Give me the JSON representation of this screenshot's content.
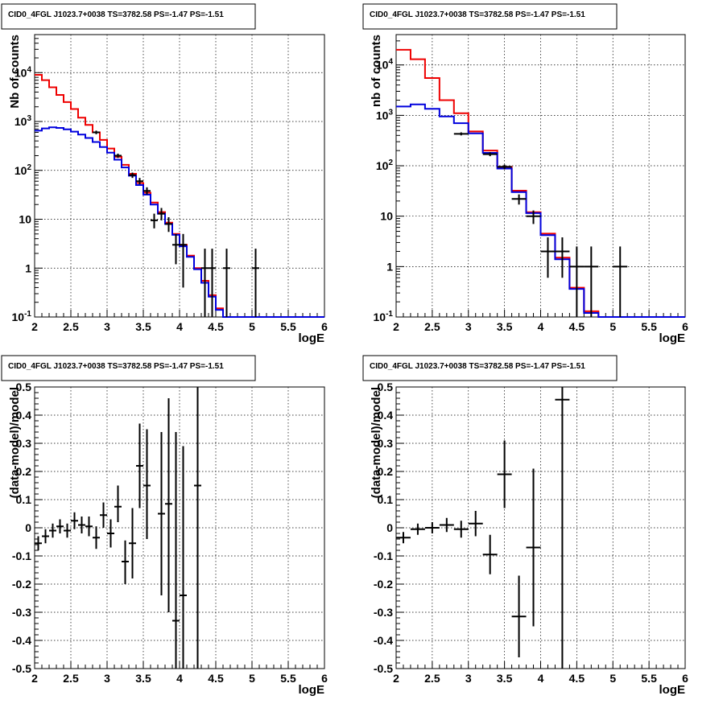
{
  "chart_data": [
    {
      "type": "histogram",
      "title": "CID0_4FGL J1023.7+0038 TS=3782.58 PS=-1.47 PS=-1.51",
      "xlabel": "logE",
      "ylabel": "Nb of counts",
      "xlim": [
        2,
        6
      ],
      "ylim": [
        0.1,
        60000
      ],
      "yscale": "log",
      "grid": true,
      "x_ticks": [
        "2",
        "2.5",
        "3",
        "3.5",
        "4",
        "4.5",
        "5",
        "5.5",
        "6"
      ],
      "y_ticks": [
        "10^-1",
        "1",
        "10",
        "10^2",
        "10^3",
        "10^4"
      ],
      "bin_edges": [
        2.0,
        2.1,
        2.2,
        2.3,
        2.4,
        2.5,
        2.6,
        2.7,
        2.8,
        2.9,
        3.0,
        3.1,
        3.2,
        3.3,
        3.4,
        3.5,
        3.6,
        3.7,
        3.8,
        3.9,
        4.0,
        4.1,
        4.2,
        4.3,
        4.4,
        4.5,
        4.6,
        4.7,
        4.8,
        4.9,
        5.0,
        5.1,
        5.2,
        5.3,
        5.4,
        5.5,
        5.6,
        5.7,
        5.8,
        5.9,
        6.0
      ],
      "series": [
        {
          "color": "#ee0000",
          "values": [
            9000,
            7000,
            5000,
            3500,
            2500,
            1800,
            1200,
            850,
            600,
            420,
            280,
            190,
            130,
            85,
            55,
            35,
            22,
            14,
            8.5,
            5,
            3,
            1.8,
            1,
            0.55,
            0.28,
            0.15,
            0.1,
            0.1,
            0.1,
            0.1,
            0.1,
            0.1,
            0.1,
            0.1,
            0.1,
            0.1,
            0.1,
            0.1,
            0.1,
            0.1
          ]
        },
        {
          "color": "#0000dd",
          "values": [
            650,
            720,
            760,
            740,
            690,
            620,
            540,
            460,
            380,
            300,
            230,
            165,
            115,
            78,
            50,
            32,
            20,
            13,
            8,
            4.8,
            2.8,
            1.7,
            0.95,
            0.5,
            0.26,
            0.14,
            0.1,
            0.1,
            0.1,
            0.1,
            0.1,
            0.1,
            0.1,
            0.1,
            0.1,
            0.1,
            0.1,
            0.1,
            0.1,
            0.1
          ]
        }
      ],
      "points": [
        {
          "x": 2.85,
          "xerr": 0.05,
          "y": 600,
          "ylo": 550,
          "yhi": 650
        },
        {
          "x": 3.15,
          "xerr": 0.05,
          "y": 200,
          "ylo": 180,
          "yhi": 220
        },
        {
          "x": 3.35,
          "xerr": 0.05,
          "y": 80,
          "ylo": 70,
          "yhi": 90
        },
        {
          "x": 3.45,
          "xerr": 0.05,
          "y": 60,
          "ylo": 52,
          "yhi": 70
        },
        {
          "x": 3.55,
          "xerr": 0.05,
          "y": 38,
          "ylo": 32,
          "yhi": 45
        },
        {
          "x": 3.65,
          "xerr": 0.05,
          "y": 9.5,
          "ylo": 6.5,
          "yhi": 13
        },
        {
          "x": 3.75,
          "xerr": 0.05,
          "y": 13,
          "ylo": 9.5,
          "yhi": 17
        },
        {
          "x": 3.85,
          "xerr": 0.05,
          "y": 8,
          "ylo": 5.5,
          "yhi": 11
        },
        {
          "x": 3.95,
          "xerr": 0.05,
          "y": 3,
          "ylo": 1.2,
          "yhi": 5
        },
        {
          "x": 4.05,
          "xerr": 0.05,
          "y": 3,
          "ylo": 0.4,
          "yhi": 5
        },
        {
          "x": 4.35,
          "xerr": 0.05,
          "y": 1,
          "ylo": 0.1,
          "yhi": 2.5
        },
        {
          "x": 4.45,
          "xerr": 0.05,
          "y": 1,
          "ylo": 0.1,
          "yhi": 2.5
        },
        {
          "x": 4.65,
          "xerr": 0.05,
          "y": 1,
          "ylo": 0.1,
          "yhi": 2.5
        },
        {
          "x": 5.05,
          "xerr": 0.05,
          "y": 1,
          "ylo": 0.1,
          "yhi": 2.5
        }
      ]
    },
    {
      "type": "histogram",
      "title": "CID0_4FGL J1023.7+0038 TS=3782.58 PS=-1.47 PS=-1.51",
      "xlabel": "logE",
      "ylabel": "nb of counts",
      "xlim": [
        2,
        6
      ],
      "ylim": [
        0.1,
        40000
      ],
      "yscale": "log",
      "grid": true,
      "x_ticks": [
        "2",
        "2.5",
        "3",
        "3.5",
        "4",
        "4.5",
        "5",
        "5.5",
        "6"
      ],
      "y_ticks": [
        "10^-1",
        "1",
        "10",
        "10^2",
        "10^3",
        "10^4"
      ],
      "bin_edges": [
        2.0,
        2.2,
        2.4,
        2.6,
        2.8,
        3.0,
        3.2,
        3.4,
        3.6,
        3.8,
        4.0,
        4.2,
        4.4,
        4.6,
        4.8,
        5.0,
        5.2,
        5.4,
        5.6,
        5.8,
        6.0
      ],
      "series": [
        {
          "color": "#ee0000",
          "values": [
            20000,
            13000,
            5500,
            2000,
            1100,
            480,
            200,
            95,
            32,
            12,
            4.5,
            1.5,
            0.38,
            0.13,
            0.1,
            0.1,
            0.1,
            0.1,
            0.1,
            0.1
          ]
        },
        {
          "color": "#0000dd",
          "values": [
            1500,
            1650,
            1350,
            950,
            700,
            440,
            180,
            88,
            30,
            11.5,
            4.2,
            1.4,
            0.36,
            0.12,
            0.1,
            0.1,
            0.1,
            0.1,
            0.1,
            0.1
          ]
        }
      ],
      "points": [
        {
          "x": 2.9,
          "xerr": 0.1,
          "y": 430,
          "ylo": 400,
          "yhi": 460
        },
        {
          "x": 3.3,
          "xerr": 0.1,
          "y": 170,
          "ylo": 155,
          "yhi": 185
        },
        {
          "x": 3.5,
          "xerr": 0.1,
          "y": 95,
          "ylo": 85,
          "yhi": 105
        },
        {
          "x": 3.7,
          "xerr": 0.1,
          "y": 22,
          "ylo": 17,
          "yhi": 27
        },
        {
          "x": 3.9,
          "xerr": 0.1,
          "y": 10,
          "ylo": 7,
          "yhi": 13
        },
        {
          "x": 4.1,
          "xerr": 0.1,
          "y": 2,
          "ylo": 0.6,
          "yhi": 3.8
        },
        {
          "x": 4.3,
          "xerr": 0.1,
          "y": 2,
          "ylo": 0.6,
          "yhi": 3.8
        },
        {
          "x": 4.5,
          "xerr": 0.1,
          "y": 1,
          "ylo": 0.1,
          "yhi": 2.5
        },
        {
          "x": 4.7,
          "xerr": 0.1,
          "y": 1,
          "ylo": 0.1,
          "yhi": 2.5
        },
        {
          "x": 5.1,
          "xerr": 0.1,
          "y": 1,
          "ylo": 0.1,
          "yhi": 2.5
        }
      ]
    },
    {
      "type": "scatter",
      "title": "CID0_4FGL J1023.7+0038 TS=3782.58 PS=-1.47 PS=-1.51",
      "xlabel": "logE",
      "ylabel": "(data-model)/model",
      "xlim": [
        2,
        6
      ],
      "ylim": [
        -0.5,
        0.5
      ],
      "yscale": "linear",
      "grid": true,
      "x_ticks": [
        "2",
        "2.5",
        "3",
        "3.5",
        "4",
        "4.5",
        "5",
        "5.5",
        "6"
      ],
      "y_ticks": [
        "-0.5",
        "-0.4",
        "-0.3",
        "-0.2",
        "-0.1",
        "0",
        "0.1",
        "0.2",
        "0.3",
        "0.4",
        "0.5"
      ],
      "points": [
        {
          "x": 2.05,
          "xerr": 0.05,
          "y": -0.055,
          "ylo": -0.08,
          "yhi": -0.03
        },
        {
          "x": 2.15,
          "xerr": 0.05,
          "y": -0.03,
          "ylo": -0.055,
          "yhi": -0.005
        },
        {
          "x": 2.25,
          "xerr": 0.05,
          "y": -0.01,
          "ylo": -0.035,
          "yhi": 0.015
        },
        {
          "x": 2.35,
          "xerr": 0.05,
          "y": 0.005,
          "ylo": -0.02,
          "yhi": 0.03
        },
        {
          "x": 2.45,
          "xerr": 0.05,
          "y": -0.01,
          "ylo": -0.035,
          "yhi": 0.015
        },
        {
          "x": 2.55,
          "xerr": 0.05,
          "y": 0.025,
          "ylo": -0.005,
          "yhi": 0.055
        },
        {
          "x": 2.65,
          "xerr": 0.05,
          "y": 0.01,
          "ylo": -0.02,
          "yhi": 0.04
        },
        {
          "x": 2.75,
          "xerr": 0.05,
          "y": 0.005,
          "ylo": -0.03,
          "yhi": 0.04
        },
        {
          "x": 2.85,
          "xerr": 0.05,
          "y": -0.035,
          "ylo": -0.075,
          "yhi": 0.005
        },
        {
          "x": 2.95,
          "xerr": 0.05,
          "y": 0.045,
          "ylo": 0.0,
          "yhi": 0.09
        },
        {
          "x": 3.05,
          "xerr": 0.05,
          "y": -0.02,
          "ylo": -0.07,
          "yhi": 0.03
        },
        {
          "x": 3.15,
          "xerr": 0.05,
          "y": 0.075,
          "ylo": 0.02,
          "yhi": 0.15
        },
        {
          "x": 3.25,
          "xerr": 0.05,
          "y": -0.12,
          "ylo": -0.2,
          "yhi": -0.045
        },
        {
          "x": 3.35,
          "xerr": 0.05,
          "y": -0.055,
          "ylo": -0.18,
          "yhi": 0.07
        },
        {
          "x": 3.45,
          "xerr": 0.05,
          "y": 0.22,
          "ylo": 0.07,
          "yhi": 0.37
        },
        {
          "x": 3.55,
          "xerr": 0.05,
          "y": 0.15,
          "ylo": -0.04,
          "yhi": 0.35
        },
        {
          "x": 3.75,
          "xerr": 0.05,
          "y": 0.05,
          "ylo": -0.24,
          "yhi": 0.34
        },
        {
          "x": 3.85,
          "xerr": 0.05,
          "y": 0.085,
          "ylo": -0.3,
          "yhi": 0.46
        },
        {
          "x": 3.95,
          "xerr": 0.05,
          "y": -0.33,
          "ylo": -0.5,
          "yhi": 0.34
        },
        {
          "x": 4.05,
          "xerr": 0.05,
          "y": -0.24,
          "ylo": -0.5,
          "yhi": 0.29
        },
        {
          "x": 4.25,
          "xerr": 0.05,
          "y": 0.15,
          "ylo": -0.5,
          "yhi": 0.5
        }
      ]
    },
    {
      "type": "scatter",
      "title": "CID0_4FGL J1023.7+0038 TS=3782.58 PS=-1.47 PS=-1.51",
      "xlabel": "logE",
      "ylabel": "(data-model)/model",
      "xlim": [
        2,
        6
      ],
      "ylim": [
        -0.5,
        0.5
      ],
      "yscale": "linear",
      "grid": true,
      "x_ticks": [
        "2",
        "2.5",
        "3",
        "3.5",
        "4",
        "4.5",
        "5",
        "5.5",
        "6"
      ],
      "y_ticks": [
        "-0.5",
        "-0.4",
        "-0.3",
        "-0.2",
        "-0.1",
        "0",
        "0.1",
        "0.2",
        "0.3",
        "0.4",
        "0.5"
      ],
      "points": [
        {
          "x": 2.1,
          "xerr": 0.1,
          "y": -0.035,
          "ylo": -0.055,
          "yhi": -0.015
        },
        {
          "x": 2.3,
          "xerr": 0.1,
          "y": -0.005,
          "ylo": -0.025,
          "yhi": 0.015
        },
        {
          "x": 2.5,
          "xerr": 0.1,
          "y": 0.0,
          "ylo": -0.02,
          "yhi": 0.02
        },
        {
          "x": 2.7,
          "xerr": 0.1,
          "y": 0.01,
          "ylo": -0.015,
          "yhi": 0.035
        },
        {
          "x": 2.9,
          "xerr": 0.1,
          "y": -0.005,
          "ylo": -0.035,
          "yhi": 0.025
        },
        {
          "x": 3.1,
          "xerr": 0.1,
          "y": 0.015,
          "ylo": -0.03,
          "yhi": 0.06
        },
        {
          "x": 3.3,
          "xerr": 0.1,
          "y": -0.095,
          "ylo": -0.165,
          "yhi": -0.025
        },
        {
          "x": 3.5,
          "xerr": 0.1,
          "y": 0.19,
          "ylo": 0.07,
          "yhi": 0.31
        },
        {
          "x": 3.7,
          "xerr": 0.1,
          "y": -0.315,
          "ylo": -0.46,
          "yhi": -0.17
        },
        {
          "x": 3.9,
          "xerr": 0.1,
          "y": -0.07,
          "ylo": -0.35,
          "yhi": 0.21
        },
        {
          "x": 4.3,
          "xerr": 0.1,
          "y": 0.455,
          "ylo": -0.5,
          "yhi": 0.5
        }
      ]
    }
  ]
}
